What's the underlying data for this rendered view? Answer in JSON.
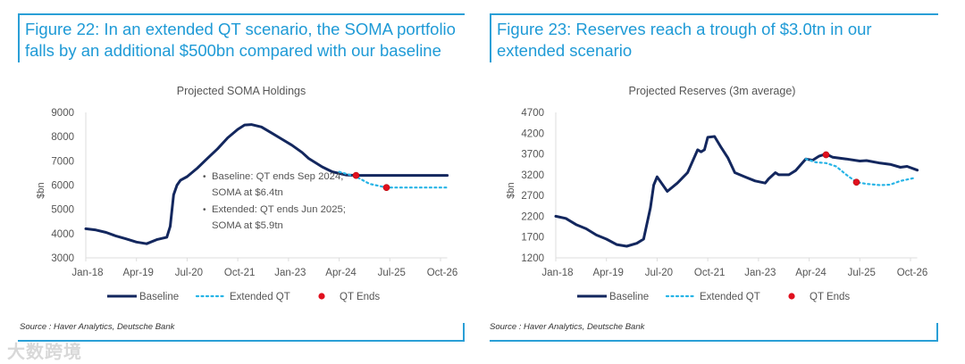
{
  "panels": [
    {
      "figure_title": "Figure 22: In an extended QT scenario, the SOMA portfolio falls by an additional $500bn compared with our baseline",
      "source": "Source : Haver Analytics, Deutsche Bank"
    },
    {
      "figure_title": "Figure 23: Reserves reach a trough of $3.0tn in our extended scenario",
      "source": "Source : Haver Analytics, Deutsche Bank"
    }
  ],
  "watermark": "大数跨境",
  "colors": {
    "baseline": "#13275e",
    "extended": "#27b4e6",
    "qt_ends": "#e0101e",
    "title": "#1e9ad6"
  },
  "chart_data": [
    {
      "type": "line",
      "title": "Projected SOMA Holdings",
      "ylabel": "$bn",
      "xlabel": "",
      "x_unit": "months since Jan-18",
      "xticks": [
        0,
        15,
        30,
        45,
        60,
        75,
        90,
        105
      ],
      "xtick_labels": [
        "Jan-18",
        "Apr-19",
        "Jul-20",
        "Oct-21",
        "Jan-23",
        "Apr-24",
        "Jul-25",
        "Oct-26"
      ],
      "xlim": [
        0,
        107
      ],
      "ylim": [
        3000,
        9000
      ],
      "yticks": [
        3000,
        4000,
        5000,
        6000,
        7000,
        8000,
        9000
      ],
      "legend": [
        "Baseline",
        "Extended QT",
        "QT Ends"
      ],
      "legend_position": "bottom",
      "annotations": [
        "Baseline: QT ends Sep 2024;",
        "SOMA at $6.4tn",
        "Extended: QT ends Jun 2025;",
        "SOMA at $5.9tn"
      ],
      "series": [
        {
          "name": "Baseline",
          "style": "solid",
          "x": [
            0,
            3,
            6,
            9,
            12,
            15,
            18,
            21,
            24,
            25,
            26,
            27,
            28,
            30,
            33,
            36,
            39,
            42,
            45,
            47,
            49,
            52,
            55,
            58,
            61,
            64,
            66,
            70,
            73,
            77,
            80,
            107
          ],
          "y": [
            4200,
            4150,
            4050,
            3900,
            3780,
            3650,
            3580,
            3750,
            3850,
            4300,
            5600,
            6000,
            6200,
            6350,
            6700,
            7100,
            7500,
            7950,
            8300,
            8480,
            8500,
            8400,
            8150,
            7900,
            7650,
            7350,
            7100,
            6750,
            6550,
            6420,
            6400,
            6400
          ]
        },
        {
          "name": "Extended QT",
          "style": "dotted",
          "x": [
            75,
            80,
            84,
            89,
            107
          ],
          "y": [
            6550,
            6350,
            6050,
            5900,
            5900
          ]
        }
      ],
      "points": [
        {
          "name": "QT Ends",
          "x": 80,
          "y": 6400
        },
        {
          "name": "QT Ends",
          "x": 89,
          "y": 5900
        }
      ]
    },
    {
      "type": "line",
      "title": "Projected Reserves (3m average)",
      "ylabel": "$bn",
      "xlabel": "",
      "x_unit": "months since Jan-18",
      "xticks": [
        0,
        15,
        30,
        45,
        60,
        75,
        90,
        105
      ],
      "xtick_labels": [
        "Jan-18",
        "Apr-19",
        "Jul-20",
        "Oct-21",
        "Jan-23",
        "Apr-24",
        "Jul-25",
        "Oct-26"
      ],
      "xlim": [
        0,
        107
      ],
      "ylim": [
        1200,
        4700
      ],
      "yticks": [
        1200,
        1700,
        2200,
        2700,
        3200,
        3700,
        4200,
        4700
      ],
      "legend": [
        "Baseline",
        "Extended QT",
        "QT Ends"
      ],
      "legend_position": "bottom",
      "annotations": [],
      "series": [
        {
          "name": "Baseline",
          "style": "solid",
          "x": [
            0,
            3,
            6,
            9,
            12,
            15,
            18,
            21,
            24,
            26,
            28,
            29,
            30,
            33,
            36,
            39,
            42,
            43,
            44,
            45,
            47,
            49,
            51,
            53,
            56,
            59,
            62,
            63,
            65,
            66,
            69,
            71,
            74,
            76,
            78,
            80,
            82,
            86,
            90,
            92,
            96,
            99,
            102,
            104,
            107
          ],
          "y": [
            2200,
            2150,
            2000,
            1900,
            1750,
            1650,
            1520,
            1480,
            1550,
            1650,
            2400,
            2950,
            3150,
            2800,
            3000,
            3250,
            3800,
            3750,
            3800,
            4100,
            4120,
            3850,
            3600,
            3250,
            3150,
            3050,
            3000,
            3100,
            3250,
            3200,
            3200,
            3300,
            3580,
            3550,
            3650,
            3700,
            3620,
            3580,
            3530,
            3540,
            3480,
            3450,
            3380,
            3400,
            3310
          ]
        },
        {
          "name": "Extended QT",
          "style": "dotted",
          "x": [
            74,
            77,
            80,
            83,
            86,
            89,
            92,
            96,
            99,
            102,
            106
          ],
          "y": [
            3580,
            3500,
            3480,
            3400,
            3200,
            3020,
            2980,
            2950,
            2960,
            3050,
            3120
          ]
        }
      ],
      "points": [
        {
          "name": "QT Ends",
          "x": 80,
          "y": 3680
        },
        {
          "name": "QT Ends",
          "x": 89,
          "y": 3020
        }
      ]
    }
  ]
}
